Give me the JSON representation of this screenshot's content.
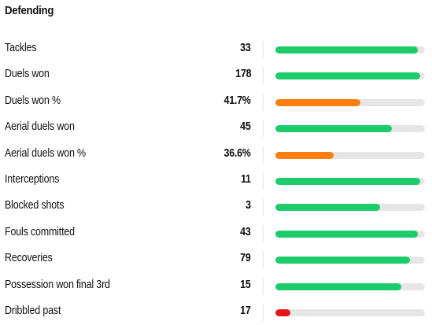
{
  "section": {
    "title": "Defending"
  },
  "colors": {
    "good": "#1ccc6a",
    "average": "#ff7f0e",
    "poor": "#e8121a",
    "track": "#e6e6e6"
  },
  "stats": [
    {
      "label": "Tackles",
      "value": "33",
      "level": 0.95,
      "rating": "good"
    },
    {
      "label": "Duels won",
      "value": "178",
      "level": 0.97,
      "rating": "good"
    },
    {
      "label": "Duels won %",
      "value": "41.7%",
      "level": 0.57,
      "rating": "average"
    },
    {
      "label": "Aerial duels won",
      "value": "45",
      "level": 0.78,
      "rating": "good"
    },
    {
      "label": "Aerial duels won %",
      "value": "36.6%",
      "level": 0.39,
      "rating": "average"
    },
    {
      "label": "Interceptions",
      "value": "11",
      "level": 0.97,
      "rating": "good"
    },
    {
      "label": "Blocked shots",
      "value": "3",
      "level": 0.7,
      "rating": "good"
    },
    {
      "label": "Fouls committed",
      "value": "43",
      "level": 0.95,
      "rating": "good"
    },
    {
      "label": "Recoveries",
      "value": "79",
      "level": 0.9,
      "rating": "good"
    },
    {
      "label": "Possession won final 3rd",
      "value": "15",
      "level": 0.84,
      "rating": "good"
    },
    {
      "label": "Dribbled past",
      "value": "17",
      "level": 0.1,
      "rating": "poor"
    }
  ]
}
